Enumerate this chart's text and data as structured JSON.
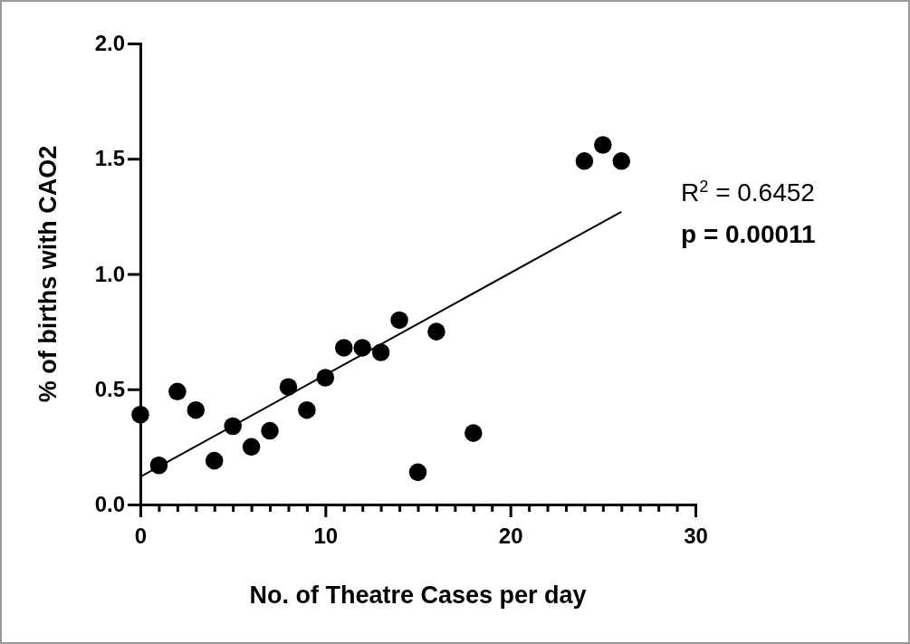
{
  "chart_data": {
    "type": "scatter",
    "xlabel": "No. of Theatre Cases per day",
    "ylabel": "% of births with CAO2",
    "xlim": [
      0,
      30
    ],
    "ylim": [
      0,
      2.0
    ],
    "xticks": [
      0,
      {
        "value": 1,
        "label": null
      },
      {
        "value": 2,
        "label": null
      },
      {
        "value": 3,
        "label": null
      },
      {
        "value": 4,
        "label": null
      },
      {
        "value": 5,
        "label": null
      },
      {
        "value": 6,
        "label": null
      },
      {
        "value": 7,
        "label": null
      },
      {
        "value": 8,
        "label": null
      },
      {
        "value": 9,
        "label": null
      },
      10,
      {
        "value": 11,
        "label": null
      },
      {
        "value": 12,
        "label": null
      },
      {
        "value": 13,
        "label": null
      },
      {
        "value": 14,
        "label": null
      },
      {
        "value": 15,
        "label": null
      },
      {
        "value": 16,
        "label": null
      },
      {
        "value": 17,
        "label": null
      },
      {
        "value": 18,
        "label": null
      },
      {
        "value": 19,
        "label": null
      },
      20,
      {
        "value": 21,
        "label": null
      },
      {
        "value": 22,
        "label": null
      },
      {
        "value": 23,
        "label": null
      },
      {
        "value": 24,
        "label": null
      },
      {
        "value": 25,
        "label": null
      },
      {
        "value": 26,
        "label": null
      },
      {
        "value": 27,
        "label": null
      },
      {
        "value": 28,
        "label": null
      },
      {
        "value": 29,
        "label": null
      },
      30
    ],
    "yticks": [
      {
        "value": 0,
        "label": "0.0"
      },
      0.5,
      {
        "value": 1,
        "label": "1.0"
      },
      1.5,
      {
        "value": 2,
        "label": "2.0"
      }
    ],
    "marker": "circle",
    "grid": false,
    "series": [
      {
        "color": "#000000",
        "x": [
          0,
          1,
          2,
          3,
          4,
          5,
          6,
          7,
          8,
          9,
          10,
          11,
          12,
          13,
          14,
          15,
          16,
          18,
          24,
          25,
          26
        ],
        "values": [
          0.39,
          0.17,
          0.49,
          0.41,
          0.19,
          0.34,
          0.25,
          0.32,
          0.51,
          0.41,
          0.55,
          0.68,
          0.68,
          0.66,
          0.8,
          0.14,
          0.75,
          0.31,
          1.49,
          1.56,
          1.49
        ]
      },
      {
        "type": "line",
        "color": "#000000",
        "marker": "none",
        "x": [
          0,
          26
        ],
        "values": [
          0.12,
          1.27
        ]
      }
    ],
    "annotations": [
      "R$^{2}$ = 0.6452",
      "p = 0.00011"
    ]
  }
}
